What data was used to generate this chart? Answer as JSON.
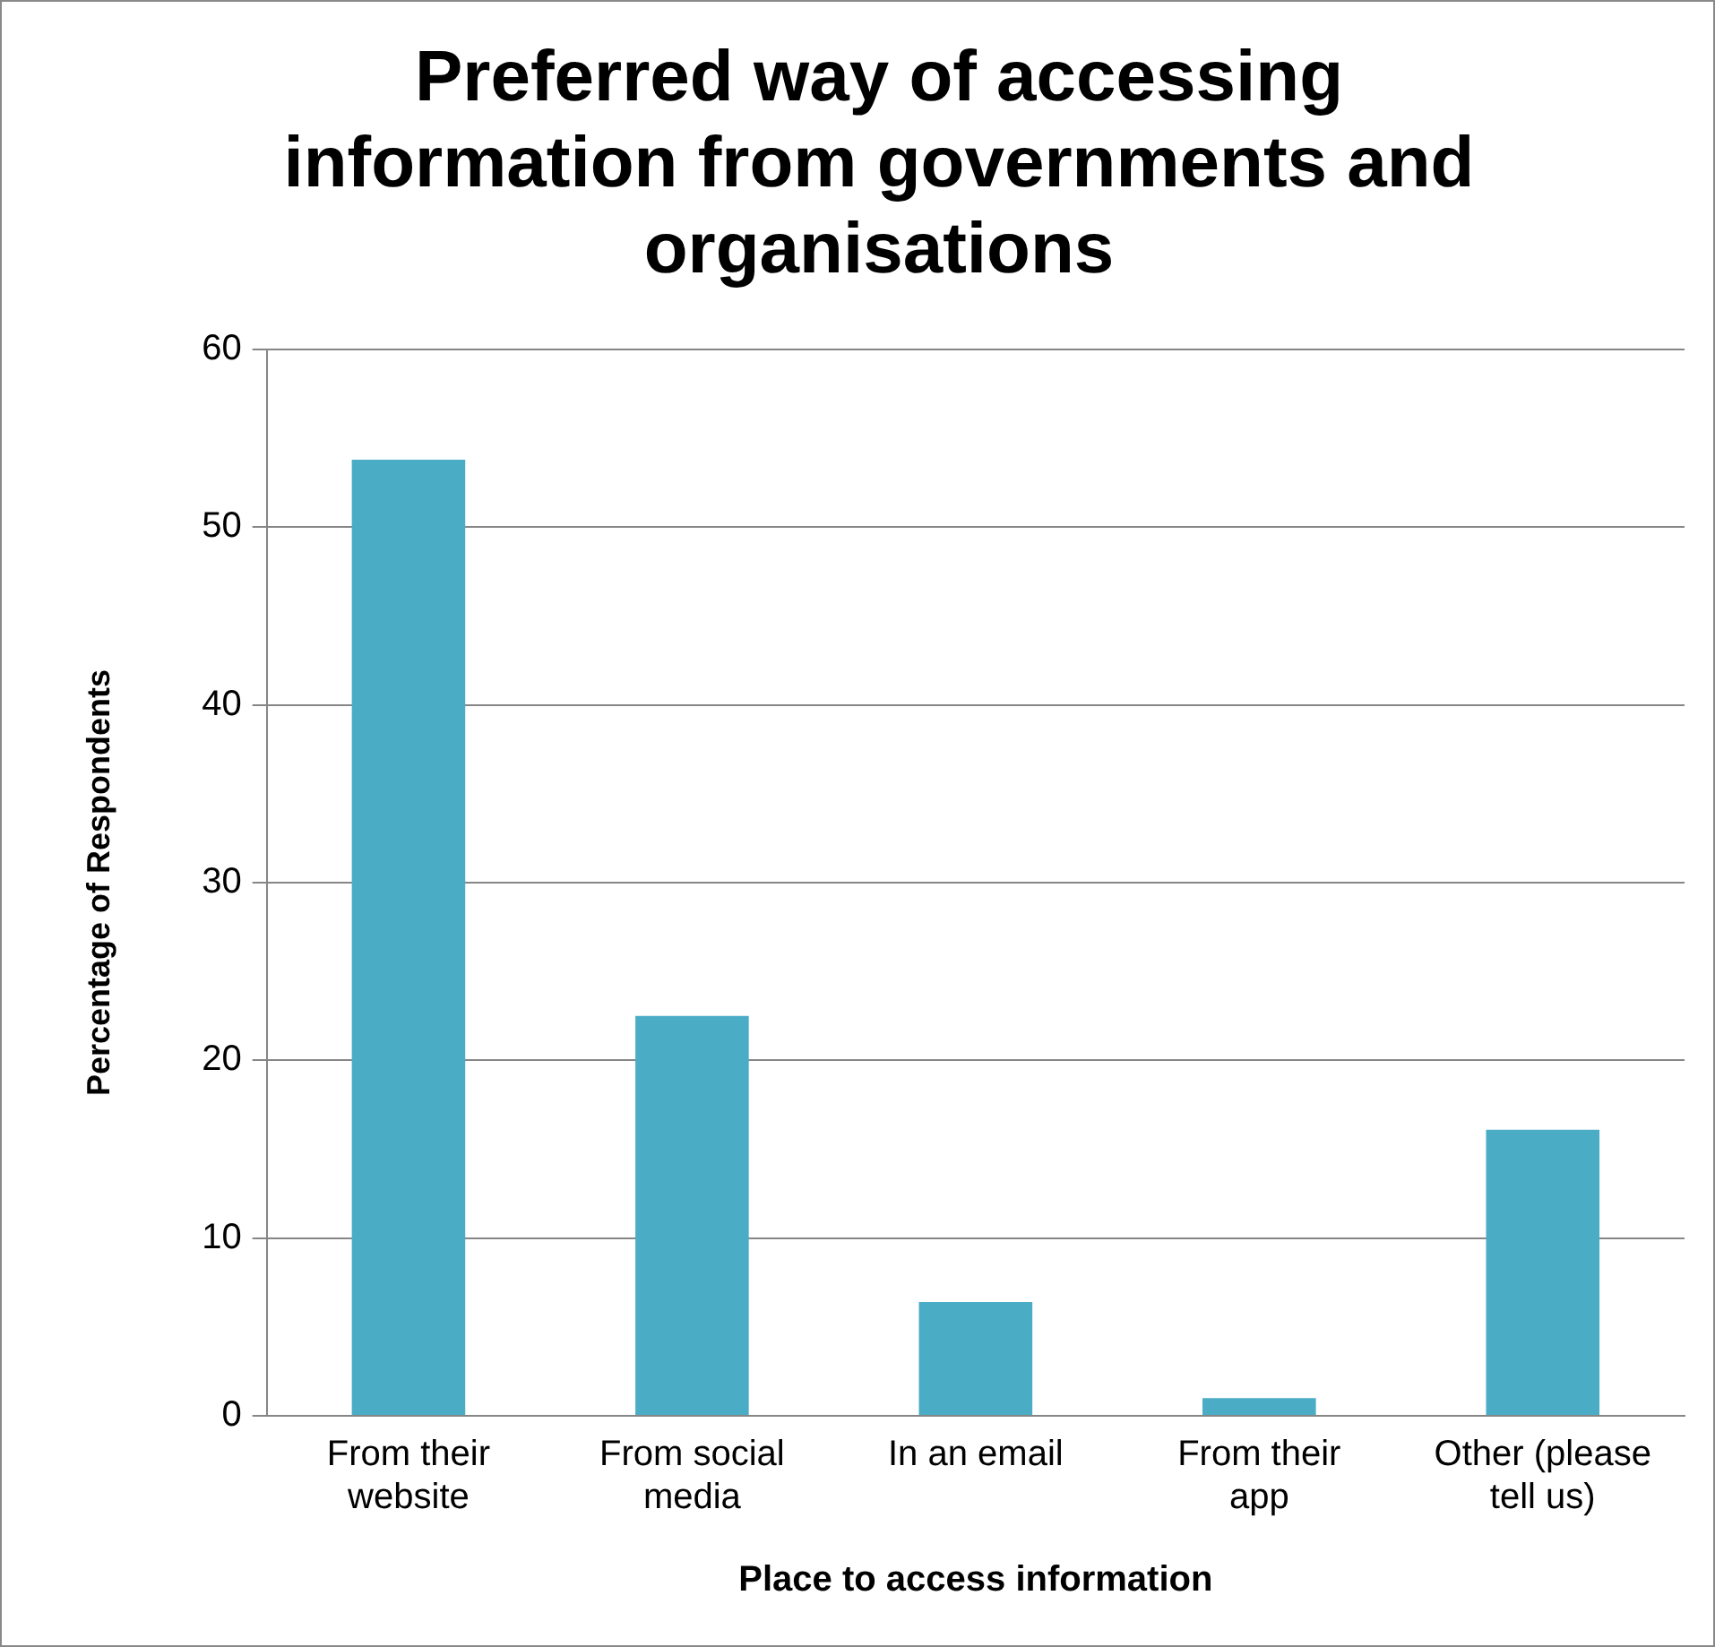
{
  "chart_data": {
    "type": "bar",
    "title": "Preferred way of accessing information from governments and organisations",
    "xlabel": "Place to access information",
    "ylabel": "Percentage of Respondents",
    "categories": [
      "From their website",
      "From social media",
      "In an email",
      "From their app",
      "Other (please tell us)"
    ],
    "values": [
      53.8,
      22.5,
      6.4,
      1.0,
      16.1
    ],
    "color": "#4bacc6",
    "ylim": [
      0,
      60
    ],
    "yticks": [
      0,
      10,
      20,
      30,
      40,
      50,
      60
    ],
    "grid": "y",
    "legend": false
  }
}
